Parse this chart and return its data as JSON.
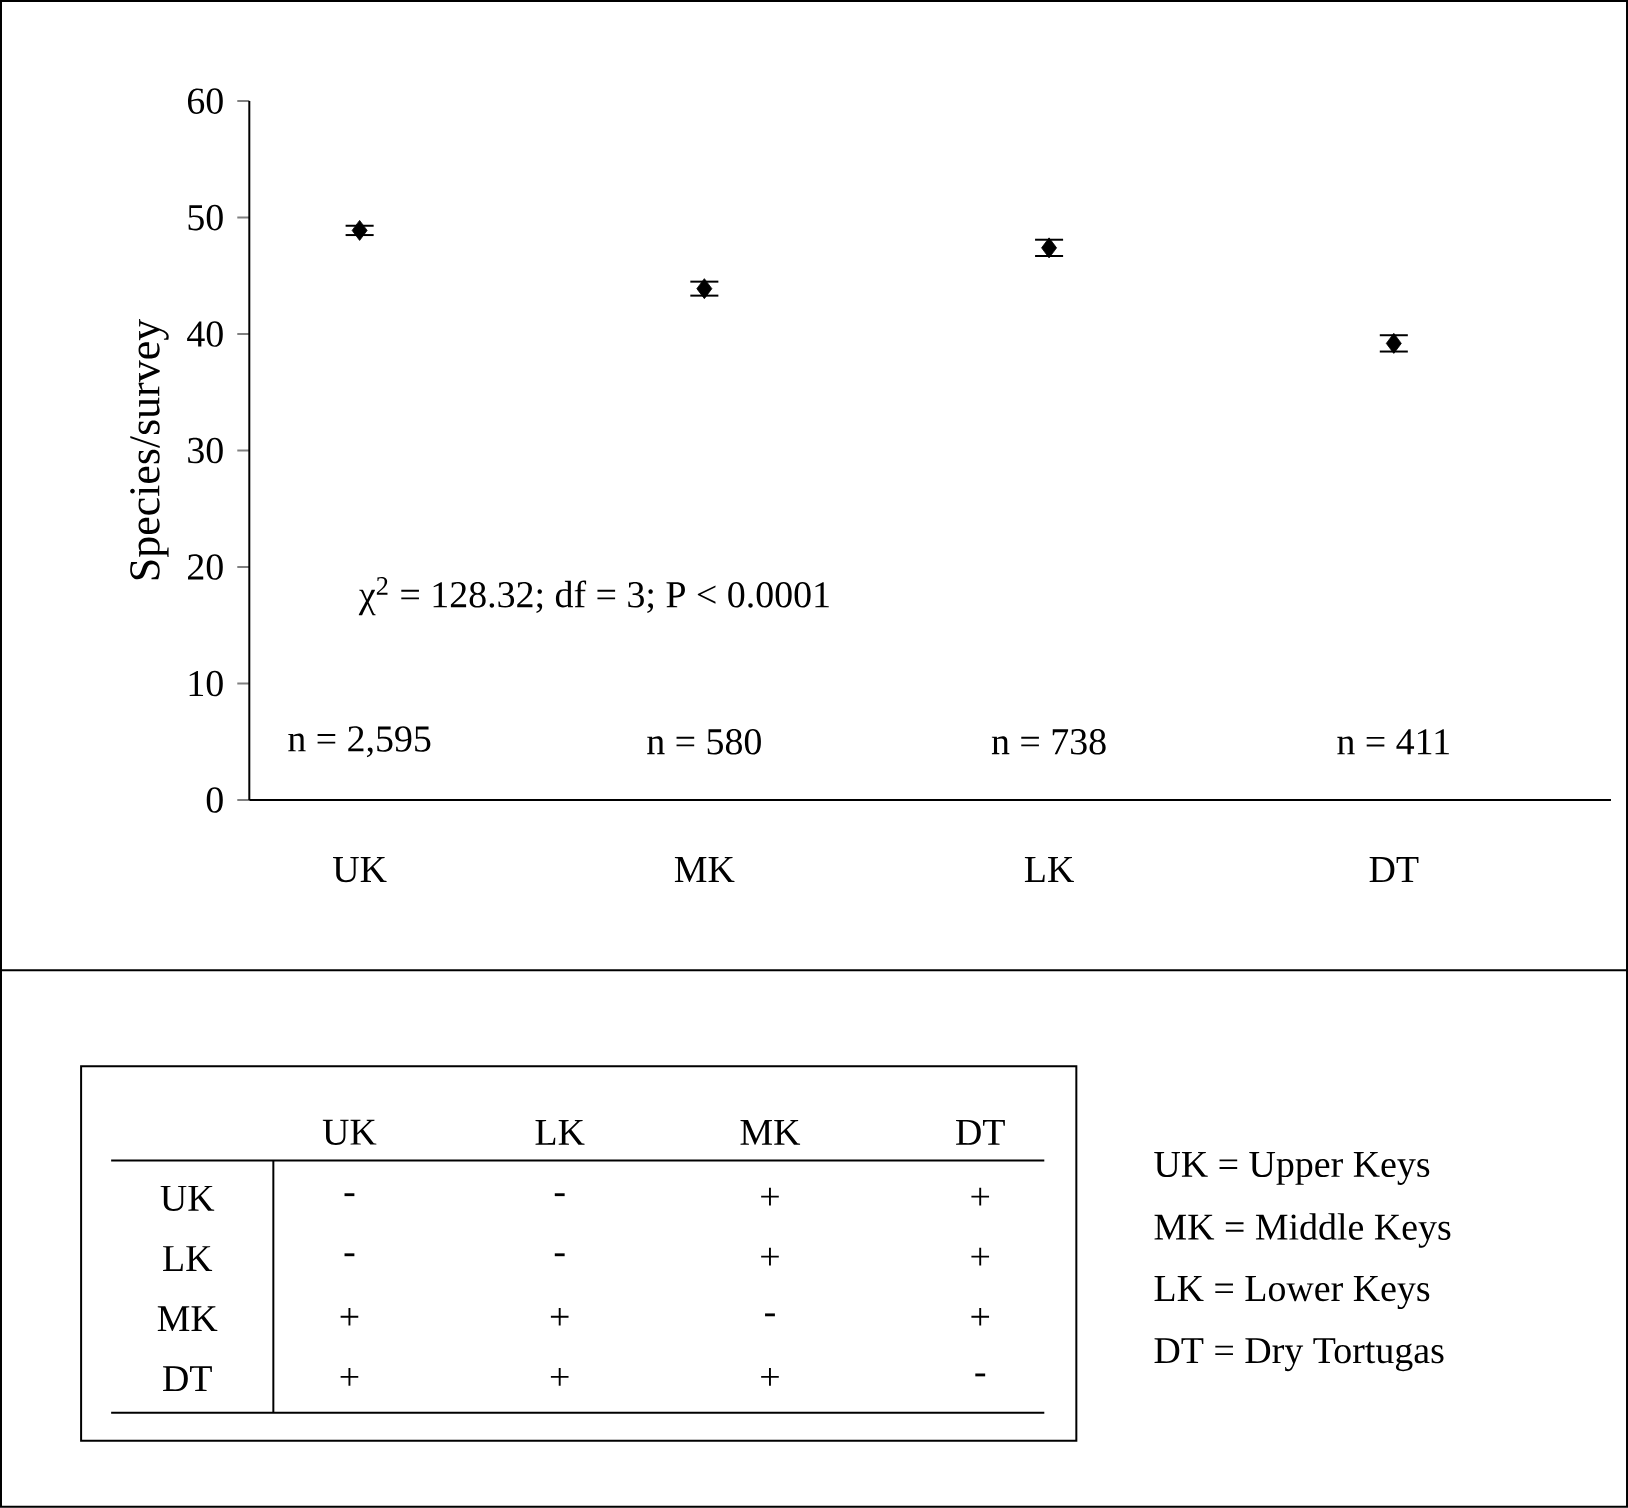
{
  "chart_data": [
    {
      "type": "scatter",
      "ylabel": "Species/survey",
      "categories": [
        "UK",
        "MK",
        "LK",
        "DT"
      ],
      "values": [
        48.9,
        43.9,
        47.4,
        39.2
      ],
      "errors": [
        0.4,
        0.6,
        0.7,
        0.7
      ],
      "color": "#000000",
      "marker": "diamond",
      "ylim": [
        0,
        60
      ],
      "yticks": [
        0,
        10,
        20,
        30,
        40,
        50,
        60
      ],
      "grid": false,
      "annotations": [
        "χ$^{2}$ = 128.32; df = 3; P < 0.0001",
        "n = 2,595",
        "n = 580",
        "n = 738",
        "n = 411"
      ]
    },
    {
      "type": "other",
      "categories": [
        "UK",
        "LK",
        "MK",
        "DT"
      ],
      "y_categories": [
        "UK",
        "LK",
        "MK",
        "DT"
      ],
      "cell_labels": [
        [
          "-",
          "-",
          "+",
          "+"
        ],
        [
          "-",
          "-",
          "+",
          "+"
        ],
        [
          "+",
          "+",
          "-",
          "+"
        ],
        [
          "+",
          "+",
          "+",
          "-"
        ]
      ],
      "annotations": [
        "UK = Upper Keys",
        "MK = Middle Keys",
        "LK = Lower Keys",
        "DT = Dry Tortugas"
      ]
    }
  ]
}
